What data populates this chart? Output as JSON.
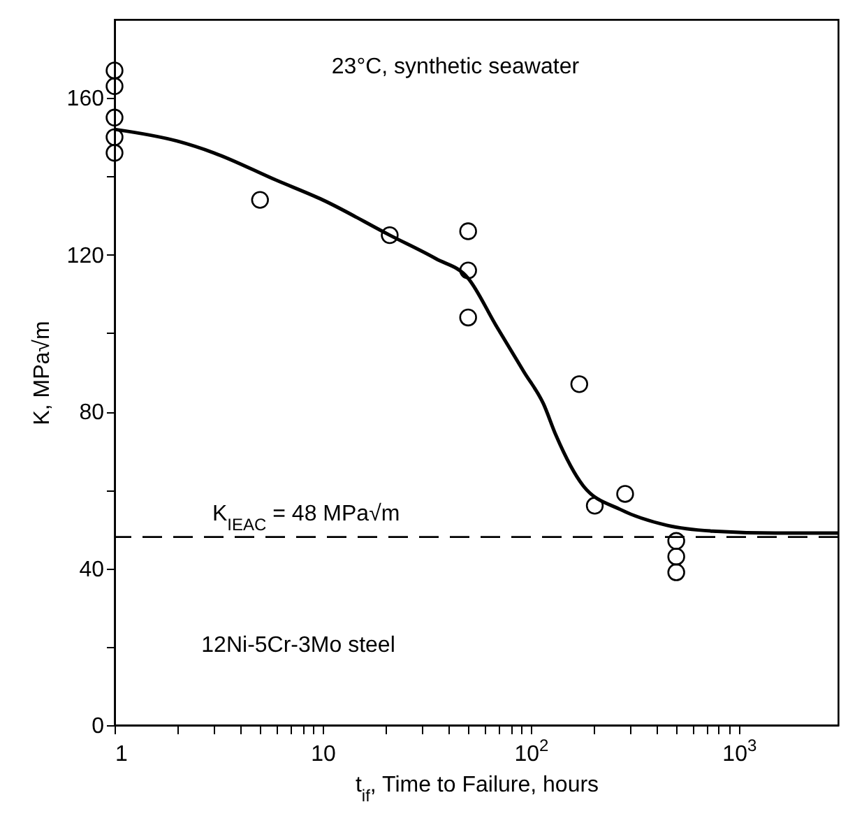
{
  "chart_data": {
    "type": "scatter",
    "xlabel": "t$_{if}$, Time to Failure, hours",
    "ylabel": "K, MPa√m",
    "annotations": [
      "23°C, synthetic seawater",
      "12Ni-5Cr-3Mo steel"
    ],
    "log": "x",
    "marker": "circle",
    "xlim": [
      1,
      3000
    ],
    "ylim": [
      0,
      180
    ],
    "xticks": [
      1,
      {
        "value": 2,
        "label": null
      },
      {
        "value": 3,
        "label": null
      },
      {
        "value": 4,
        "label": null
      },
      {
        "value": 5,
        "label": null
      },
      {
        "value": 6,
        "label": null
      },
      {
        "value": 7,
        "label": null
      },
      {
        "value": 8,
        "label": null
      },
      {
        "value": 9,
        "label": null
      },
      10,
      {
        "value": 20,
        "label": null
      },
      {
        "value": 30,
        "label": null
      },
      {
        "value": 40,
        "label": null
      },
      {
        "value": 50,
        "label": null
      },
      {
        "value": 60,
        "label": null
      },
      {
        "value": 70,
        "label": null
      },
      {
        "value": 80,
        "label": null
      },
      {
        "value": 90,
        "label": null
      },
      {
        "value": 100,
        "label": "10$^{2}$"
      },
      {
        "value": 200,
        "label": null
      },
      {
        "value": 300,
        "label": null
      },
      {
        "value": 400,
        "label": null
      },
      {
        "value": 500,
        "label": null
      },
      {
        "value": 600,
        "label": null
      },
      {
        "value": 700,
        "label": null
      },
      {
        "value": 800,
        "label": null
      },
      {
        "value": 900,
        "label": null
      },
      {
        "value": 1000,
        "label": "10$^{3}$"
      }
    ],
    "yticks": [
      0,
      {
        "value": 20,
        "label": null
      },
      40,
      {
        "value": 60,
        "label": null
      },
      80,
      {
        "value": 100,
        "label": null
      },
      120,
      {
        "value": 140,
        "label": null
      },
      160
    ],
    "ref_lines": [
      {
        "axis": "y",
        "value": 48,
        "label": "K$_{IEAC}$ = 48 MPa√m",
        "color": "#000000",
        "line_style": "dashed"
      }
    ],
    "series": [
      {
        "color": "#000000",
        "x": [
          1,
          1,
          1,
          1,
          1,
          5,
          21,
          50,
          50,
          50,
          171,
          203,
          284,
          500,
          500,
          500
        ],
        "values": [
          167,
          163,
          155,
          150,
          146,
          134,
          125,
          126,
          116,
          104,
          87,
          56,
          59,
          47,
          43,
          39
        ]
      },
      {
        "type": "line",
        "color": "#000000",
        "marker": "none",
        "line_style": "solid",
        "x": [
          1,
          2,
          3,
          6,
          10,
          21,
          35,
          50,
          68,
          93,
          115,
          132,
          179,
          270,
          450,
          750,
          1500,
          3000
        ],
        "values": [
          152,
          149,
          146,
          139,
          134,
          125,
          119,
          114,
          102,
          90,
          82,
          74,
          61,
          55,
          51,
          49.5,
          49,
          49
        ]
      }
    ]
  }
}
